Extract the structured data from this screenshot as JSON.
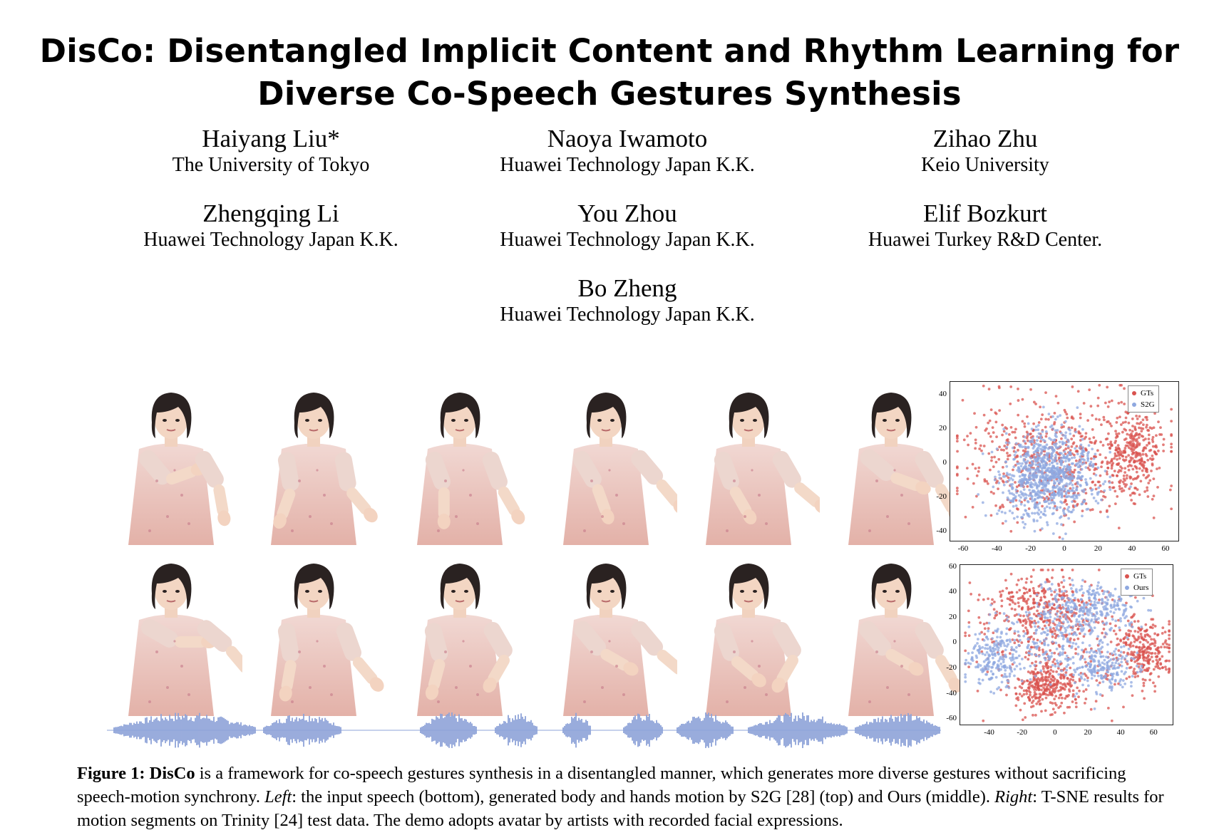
{
  "title": {
    "line1": "DisCo: Disentangled Implicit Content and Rhythm Learning for",
    "line2": "Diverse Co-Speech Gestures Synthesis"
  },
  "authors": [
    {
      "name": "Haiyang Liu*",
      "affiliation": "The University of Tokyo"
    },
    {
      "name": "Naoya Iwamoto",
      "affiliation": "Huawei Technology Japan K.K."
    },
    {
      "name": "Zihao Zhu",
      "affiliation": "Keio University"
    },
    {
      "name": "Zhengqing Li",
      "affiliation": "Huawei Technology Japan K.K."
    },
    {
      "name": "You Zhou",
      "affiliation": "Huawei Technology Japan K.K."
    },
    {
      "name": "Elif Bozkurt",
      "affiliation": "Huawei Turkey R&D Center."
    },
    {
      "name": "Bo Zheng",
      "affiliation": "Huawei Technology Japan K.K."
    }
  ],
  "figure": {
    "avatar_rows": 2,
    "avatars_per_row": 6,
    "avatar_icon": "avatar-figure-icon",
    "waveform_color": "#8ea3d9",
    "colors": {
      "gt": "#d9534f",
      "s2g": "#8fa8e0",
      "ours": "#8fa8e0"
    }
  },
  "chart_data": [
    {
      "type": "scatter",
      "title": "",
      "xlabel": "",
      "ylabel": "",
      "xlim": [
        -68,
        68
      ],
      "ylim": [
        -46,
        48
      ],
      "xticks": [
        "-60",
        "-40",
        "-20",
        "0",
        "20",
        "40",
        "60"
      ],
      "yticks": [
        "40",
        "20",
        "0",
        "-20",
        "-40"
      ],
      "legend_position": "top-right",
      "series": [
        {
          "name": "GTs",
          "color": "#d9534f",
          "spread": "wide",
          "cluster_center": [
            10,
            0
          ]
        },
        {
          "name": "S2G",
          "color": "#8fa8e0",
          "spread": "compact",
          "cluster_center": [
            -10,
            -8
          ]
        }
      ]
    },
    {
      "type": "scatter",
      "title": "",
      "xlabel": "",
      "ylabel": "",
      "xlim": [
        -58,
        72
      ],
      "ylim": [
        -65,
        62
      ],
      "xticks": [
        "-40",
        "-20",
        "0",
        "20",
        "40",
        "60"
      ],
      "yticks": [
        "60",
        "40",
        "20",
        "0",
        "-20",
        "-40",
        "-60"
      ],
      "legend_position": "top-right",
      "series": [
        {
          "name": "GTs",
          "color": "#d9534f",
          "spread": "wide",
          "cluster_center": [
            5,
            0
          ]
        },
        {
          "name": "Ours",
          "color": "#8fa8e0",
          "spread": "wide",
          "cluster_center": [
            5,
            5
          ]
        }
      ]
    }
  ],
  "caption": {
    "label": "Figure 1:",
    "name": "DisCo",
    "text1": " is a framework for co-speech gestures synthesis in a disentangled manner, which generates more diverse gestures without sacrificing speech-motion synchrony. ",
    "left_label": "Left",
    "text2": ": the input speech (bottom), generated body and hands motion by S2G [28] (top) and Ours (middle). ",
    "right_label": "Right",
    "text3": ": T-SNE results for motion segments on Trinity [24] test data. The demo adopts avatar by artists with recorded facial expressions."
  }
}
